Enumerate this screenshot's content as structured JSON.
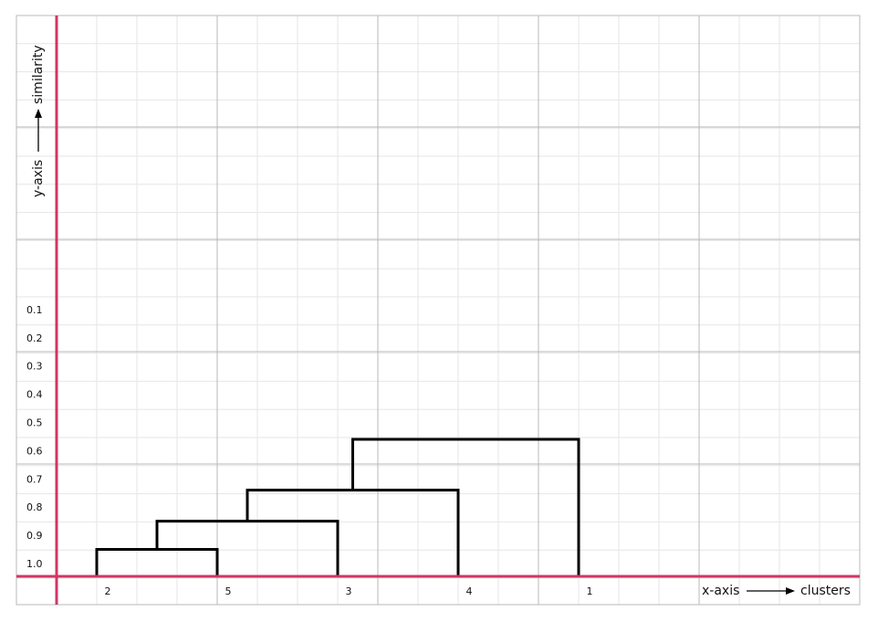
{
  "chart_data": {
    "type": "dendrogram",
    "xlabel": "x-axis",
    "xlabel_target": "clusters",
    "ylabel": "y-axis",
    "ylabel_target": "similarity",
    "leaves": [
      "2",
      "5",
      "3",
      "4",
      "1"
    ],
    "y_ticks": [
      "0.1",
      "0.2",
      "0.3",
      "0.4",
      "0.5",
      "0.6",
      "0.7",
      "0.8",
      "0.9",
      "1.0"
    ],
    "y_scale": "inverted, 1.0 near baseline",
    "grid": true,
    "merges": [
      {
        "clusters": [
          "2",
          "5"
        ],
        "similarity": 0.95
      },
      {
        "clusters": [
          "2,5",
          "3"
        ],
        "similarity": 0.85
      },
      {
        "clusters": [
          "2,5,3",
          "4"
        ],
        "similarity": 0.74
      },
      {
        "clusters": [
          "2,5,3,4",
          "1"
        ],
        "similarity": 0.56
      }
    ],
    "colors": {
      "axis": "#d23565",
      "major_grid": "#b8b8b8",
      "minor_grid": "#e6e6e6",
      "dendrogram": "#000000"
    }
  }
}
